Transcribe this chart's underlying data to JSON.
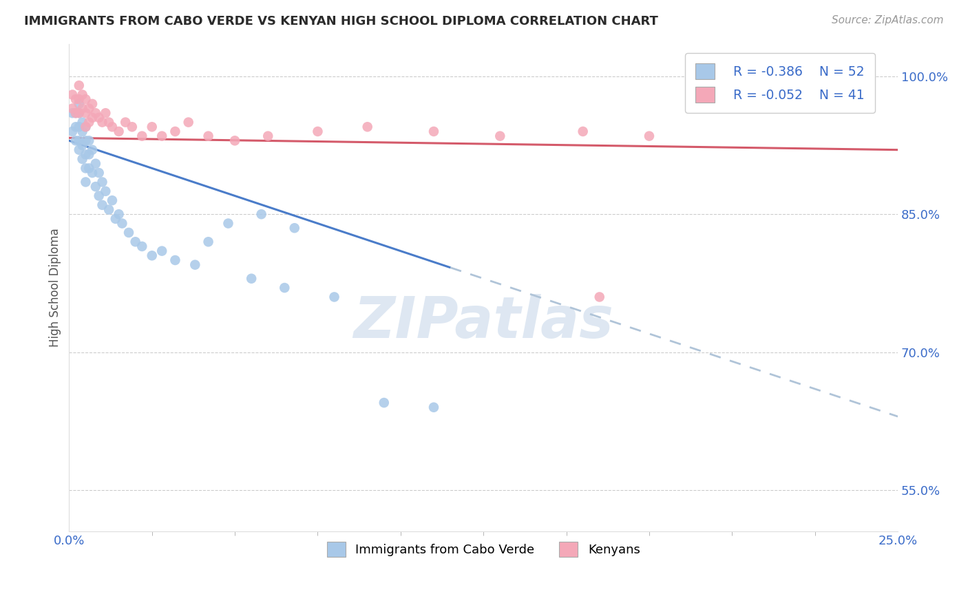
{
  "title": "IMMIGRANTS FROM CABO VERDE VS KENYAN HIGH SCHOOL DIPLOMA CORRELATION CHART",
  "source": "Source: ZipAtlas.com",
  "ylabel": "High School Diploma",
  "xlim": [
    0.0,
    0.25
  ],
  "ylim": [
    0.505,
    1.035
  ],
  "y_ticks": [
    0.55,
    0.7,
    0.85,
    1.0
  ],
  "y_tick_labels": [
    "55.0%",
    "70.0%",
    "85.0%",
    "100.0%"
  ],
  "x_ticks": [
    0.0,
    0.25
  ],
  "x_tick_labels": [
    "0.0%",
    "25.0%"
  ],
  "title_color": "#2B2B2B",
  "source_color": "#999999",
  "ylabel_color": "#555555",
  "tick_label_color": "#3B6CC9",
  "blue_color": "#A8C8E8",
  "pink_color": "#F4A8B8",
  "trend_blue_color": "#4A7CC9",
  "trend_pink_color": "#D45A6A",
  "trend_dash_color": "#B0C4D8",
  "watermark": "ZIPatlas",
  "watermark_color": "#C8D8EA",
  "legend_label1": "Immigrants from Cabo Verde",
  "legend_label2": "Kenyans",
  "legend_r1": "R = -0.386",
  "legend_n1": "N = 52",
  "legend_r2": "R = -0.052",
  "legend_n2": "N = 41",
  "blue_trend_x0": 0.0,
  "blue_trend_y0": 0.93,
  "blue_trend_x1": 0.25,
  "blue_trend_y1": 0.63,
  "blue_solid_xend": 0.115,
  "pink_trend_x0": 0.0,
  "pink_trend_y0": 0.933,
  "pink_trend_x1": 0.25,
  "pink_trend_y1": 0.92,
  "blue_scatter_x": [
    0.001,
    0.001,
    0.002,
    0.002,
    0.002,
    0.003,
    0.003,
    0.003,
    0.003,
    0.003,
    0.004,
    0.004,
    0.004,
    0.004,
    0.005,
    0.005,
    0.005,
    0.005,
    0.005,
    0.006,
    0.006,
    0.006,
    0.007,
    0.007,
    0.008,
    0.008,
    0.009,
    0.009,
    0.01,
    0.01,
    0.011,
    0.012,
    0.013,
    0.014,
    0.015,
    0.016,
    0.018,
    0.02,
    0.022,
    0.025,
    0.028,
    0.032,
    0.038,
    0.042,
    0.048,
    0.055,
    0.065,
    0.08,
    0.095,
    0.11,
    0.058,
    0.068
  ],
  "blue_scatter_y": [
    0.96,
    0.94,
    0.96,
    0.945,
    0.93,
    0.97,
    0.96,
    0.945,
    0.93,
    0.92,
    0.95,
    0.94,
    0.925,
    0.91,
    0.945,
    0.93,
    0.915,
    0.9,
    0.885,
    0.93,
    0.915,
    0.9,
    0.92,
    0.895,
    0.905,
    0.88,
    0.895,
    0.87,
    0.885,
    0.86,
    0.875,
    0.855,
    0.865,
    0.845,
    0.85,
    0.84,
    0.83,
    0.82,
    0.815,
    0.805,
    0.81,
    0.8,
    0.795,
    0.82,
    0.84,
    0.78,
    0.77,
    0.76,
    0.645,
    0.64,
    0.85,
    0.835
  ],
  "pink_scatter_x": [
    0.001,
    0.001,
    0.002,
    0.002,
    0.003,
    0.003,
    0.003,
    0.004,
    0.004,
    0.005,
    0.005,
    0.005,
    0.006,
    0.006,
    0.007,
    0.007,
    0.008,
    0.009,
    0.01,
    0.011,
    0.012,
    0.013,
    0.015,
    0.017,
    0.019,
    0.022,
    0.025,
    0.028,
    0.032,
    0.036,
    0.042,
    0.05,
    0.06,
    0.075,
    0.09,
    0.11,
    0.13,
    0.155,
    0.175,
    0.16,
    0.235
  ],
  "pink_scatter_y": [
    0.98,
    0.965,
    0.975,
    0.96,
    0.99,
    0.975,
    0.96,
    0.98,
    0.965,
    0.975,
    0.96,
    0.945,
    0.965,
    0.95,
    0.97,
    0.955,
    0.96,
    0.955,
    0.95,
    0.96,
    0.95,
    0.945,
    0.94,
    0.95,
    0.945,
    0.935,
    0.945,
    0.935,
    0.94,
    0.95,
    0.935,
    0.93,
    0.935,
    0.94,
    0.945,
    0.94,
    0.935,
    0.94,
    0.935,
    0.76,
    1.008
  ],
  "grid_color": "#CCCCCC",
  "bg_color": "#FFFFFF"
}
